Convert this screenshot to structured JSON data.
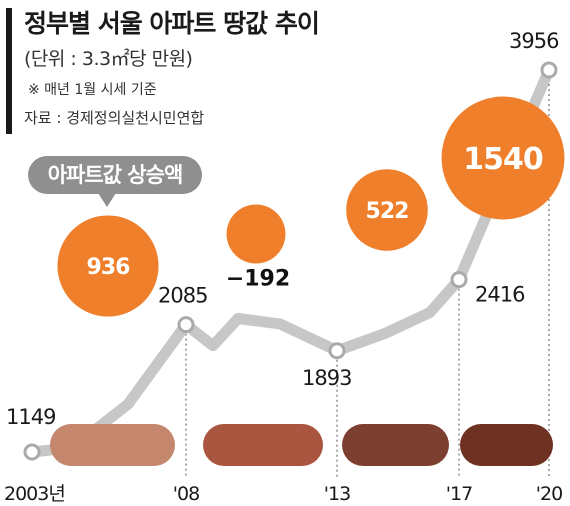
{
  "title": "정부별 서울 아파트 땅값 추이",
  "unit": "(단위 : 3.3㎡당 만원)",
  "note": "※ 매년 1월 시세 기준",
  "source": "자료 : 경제정의실천시민연합",
  "legend_label": "아파트값 상승액",
  "colors": {
    "line": "#c7c7c7",
    "bubble": "#ef7f2a",
    "bubble_text": "#ffffff",
    "negative_bubble_text": "#111111",
    "legend": "#8f8f8f",
    "era_bars": [
      "#c4866c",
      "#a9553f",
      "#7d3f2f",
      "#6e3122"
    ]
  },
  "chart_data": {
    "type": "line",
    "x_labels": [
      "2003년",
      "'08",
      "'13",
      "'17",
      "'20"
    ],
    "x_years": [
      2003,
      2008,
      2013,
      2017,
      2020
    ],
    "points": [
      {
        "year": 2003,
        "value": 1149
      },
      {
        "year": 2008,
        "value": 2085
      },
      {
        "year": 2013,
        "value": 1893
      },
      {
        "year": 2017,
        "value": 2416
      },
      {
        "year": 2020,
        "value": 3956
      }
    ],
    "increases": [
      {
        "label": "936",
        "value": 936,
        "from_year": 2003,
        "to_year": 2008
      },
      {
        "label": "−192",
        "value": -192,
        "from_year": 2008,
        "to_year": 2013
      },
      {
        "label": "522",
        "value": 522,
        "from_year": 2013,
        "to_year": 2017
      },
      {
        "label": "1540",
        "value": 1540,
        "from_year": 2017,
        "to_year": 2020
      }
    ],
    "era_bar_count": 4
  }
}
